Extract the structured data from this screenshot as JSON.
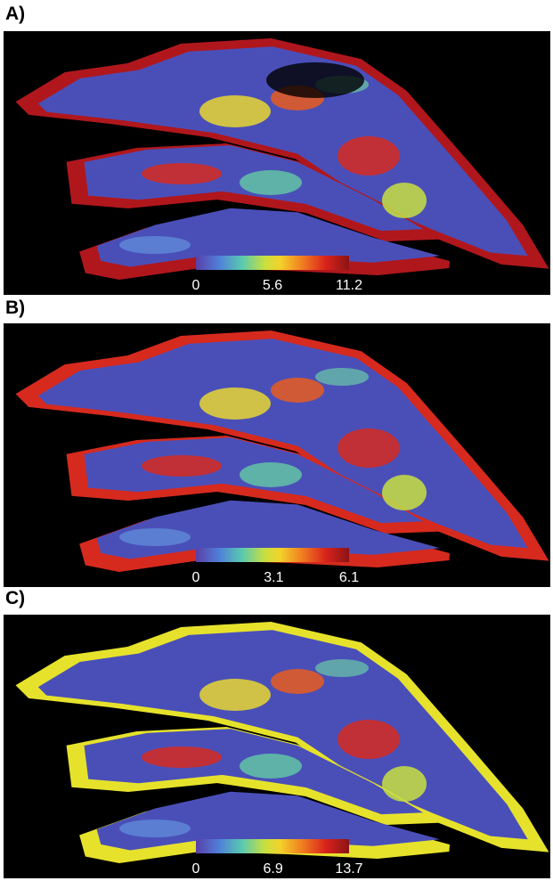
{
  "panels": [
    {
      "label": "A)",
      "colorbar": {
        "ticks": [
          0,
          5.6,
          11.2
        ]
      }
    },
    {
      "label": "B)",
      "colorbar": {
        "ticks": [
          0,
          3.1,
          6.1
        ]
      }
    },
    {
      "label": "C)",
      "colorbar": {
        "ticks": [
          0,
          6.9,
          13.7
        ]
      }
    }
  ]
}
